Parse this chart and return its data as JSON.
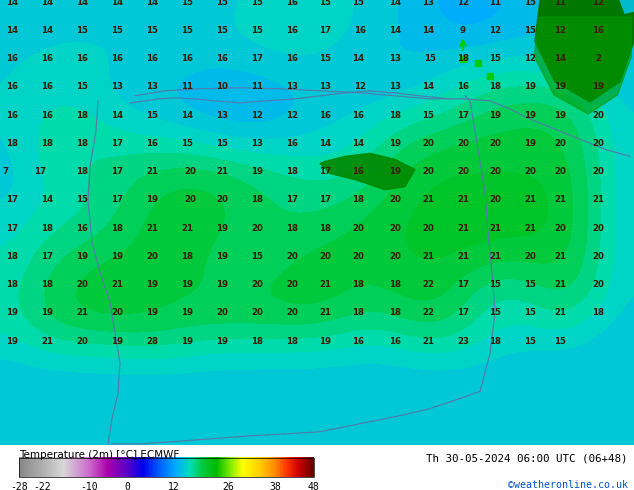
{
  "title_left": "Temperature (2m) [°C] ECMWF",
  "title_right": "Th 30-05-2024 06:00 UTC (06+48)",
  "credit": "©weatheronline.co.uk",
  "colorbar_ticks": [
    -28,
    -22,
    -10,
    0,
    12,
    26,
    38,
    48
  ],
  "figsize": [
    6.34,
    4.9
  ],
  "dpi": 100,
  "map_facecolor": "#f5b800",
  "cb_label_color": "black",
  "credit_color": "#0055cc",
  "temp_text_color": "#3d1a00",
  "border_color": "#5577aa",
  "temp_labels": [
    [
      12,
      2,
      "14"
    ],
    [
      47,
      2,
      "14"
    ],
    [
      82,
      2,
      "14"
    ],
    [
      117,
      2,
      "14"
    ],
    [
      152,
      2,
      "14"
    ],
    [
      187,
      2,
      "15"
    ],
    [
      222,
      2,
      "15"
    ],
    [
      257,
      2,
      "15"
    ],
    [
      292,
      2,
      "16"
    ],
    [
      325,
      2,
      "15"
    ],
    [
      358,
      2,
      "15"
    ],
    [
      395,
      2,
      "14"
    ],
    [
      428,
      2,
      "13"
    ],
    [
      463,
      2,
      "12"
    ],
    [
      495,
      2,
      "11"
    ],
    [
      530,
      2,
      "15"
    ],
    [
      560,
      2,
      "11"
    ],
    [
      598,
      2,
      "12"
    ],
    [
      12,
      30,
      "14"
    ],
    [
      47,
      30,
      "14"
    ],
    [
      82,
      30,
      "15"
    ],
    [
      117,
      30,
      "15"
    ],
    [
      152,
      30,
      "15"
    ],
    [
      187,
      30,
      "15"
    ],
    [
      222,
      30,
      "15"
    ],
    [
      257,
      30,
      "15"
    ],
    [
      292,
      30,
      "16"
    ],
    [
      325,
      30,
      "17"
    ],
    [
      360,
      30,
      "16"
    ],
    [
      395,
      30,
      "14"
    ],
    [
      428,
      30,
      "14"
    ],
    [
      463,
      30,
      "9"
    ],
    [
      495,
      30,
      "12"
    ],
    [
      530,
      30,
      "15"
    ],
    [
      560,
      30,
      "12"
    ],
    [
      598,
      30,
      "16"
    ],
    [
      12,
      58,
      "16"
    ],
    [
      47,
      58,
      "16"
    ],
    [
      82,
      58,
      "16"
    ],
    [
      117,
      58,
      "16"
    ],
    [
      152,
      58,
      "16"
    ],
    [
      187,
      58,
      "16"
    ],
    [
      222,
      58,
      "16"
    ],
    [
      257,
      58,
      "17"
    ],
    [
      292,
      58,
      "16"
    ],
    [
      325,
      58,
      "15"
    ],
    [
      358,
      58,
      "14"
    ],
    [
      395,
      58,
      "13"
    ],
    [
      430,
      58,
      "15"
    ],
    [
      463,
      58,
      "18"
    ],
    [
      495,
      58,
      "15"
    ],
    [
      530,
      58,
      "12"
    ],
    [
      560,
      58,
      "14"
    ],
    [
      598,
      58,
      "2"
    ],
    [
      12,
      86,
      "16"
    ],
    [
      47,
      86,
      "16"
    ],
    [
      82,
      86,
      "15"
    ],
    [
      117,
      86,
      "13"
    ],
    [
      152,
      86,
      "13"
    ],
    [
      187,
      86,
      "11"
    ],
    [
      222,
      86,
      "10"
    ],
    [
      257,
      86,
      "11"
    ],
    [
      292,
      86,
      "13"
    ],
    [
      325,
      86,
      "13"
    ],
    [
      360,
      86,
      "12"
    ],
    [
      395,
      86,
      "13"
    ],
    [
      428,
      86,
      "14"
    ],
    [
      463,
      86,
      "16"
    ],
    [
      495,
      86,
      "18"
    ],
    [
      530,
      86,
      "19"
    ],
    [
      560,
      86,
      "19"
    ],
    [
      598,
      86,
      "19"
    ],
    [
      12,
      114,
      "16"
    ],
    [
      47,
      114,
      "16"
    ],
    [
      82,
      114,
      "18"
    ],
    [
      117,
      114,
      "14"
    ],
    [
      152,
      114,
      "15"
    ],
    [
      187,
      114,
      "14"
    ],
    [
      222,
      114,
      "13"
    ],
    [
      257,
      114,
      "12"
    ],
    [
      292,
      114,
      "12"
    ],
    [
      325,
      114,
      "16"
    ],
    [
      358,
      114,
      "16"
    ],
    [
      395,
      114,
      "18"
    ],
    [
      428,
      114,
      "15"
    ],
    [
      463,
      114,
      "17"
    ],
    [
      495,
      114,
      "19"
    ],
    [
      530,
      114,
      "19"
    ],
    [
      560,
      114,
      "19"
    ],
    [
      598,
      114,
      "20"
    ],
    [
      12,
      142,
      "18"
    ],
    [
      47,
      142,
      "18"
    ],
    [
      82,
      142,
      "18"
    ],
    [
      117,
      142,
      "17"
    ],
    [
      152,
      142,
      "16"
    ],
    [
      187,
      142,
      "15"
    ],
    [
      222,
      142,
      "15"
    ],
    [
      257,
      142,
      "13"
    ],
    [
      292,
      142,
      "16"
    ],
    [
      325,
      142,
      "14"
    ],
    [
      358,
      142,
      "14"
    ],
    [
      395,
      142,
      "19"
    ],
    [
      428,
      142,
      "20"
    ],
    [
      463,
      142,
      "20"
    ],
    [
      495,
      142,
      "20"
    ],
    [
      530,
      142,
      "19"
    ],
    [
      560,
      142,
      "20"
    ],
    [
      598,
      142,
      "20"
    ],
    [
      5,
      170,
      "7"
    ],
    [
      40,
      170,
      "17"
    ],
    [
      82,
      170,
      "18"
    ],
    [
      117,
      170,
      "17"
    ],
    [
      152,
      170,
      "21"
    ],
    [
      190,
      170,
      "20"
    ],
    [
      222,
      170,
      "21"
    ],
    [
      257,
      170,
      "19"
    ],
    [
      292,
      170,
      "18"
    ],
    [
      325,
      170,
      "17"
    ],
    [
      358,
      170,
      "16"
    ],
    [
      395,
      170,
      "19"
    ],
    [
      428,
      170,
      "20"
    ],
    [
      463,
      170,
      "20"
    ],
    [
      495,
      170,
      "20"
    ],
    [
      530,
      170,
      "20"
    ],
    [
      560,
      170,
      "20"
    ],
    [
      598,
      170,
      "20"
    ],
    [
      12,
      198,
      "17"
    ],
    [
      47,
      198,
      "14"
    ],
    [
      82,
      198,
      "15"
    ],
    [
      117,
      198,
      "17"
    ],
    [
      152,
      198,
      "19"
    ],
    [
      190,
      198,
      "20"
    ],
    [
      222,
      198,
      "20"
    ],
    [
      257,
      198,
      "18"
    ],
    [
      292,
      198,
      "17"
    ],
    [
      325,
      198,
      "17"
    ],
    [
      358,
      198,
      "18"
    ],
    [
      395,
      198,
      "20"
    ],
    [
      428,
      198,
      "21"
    ],
    [
      463,
      198,
      "21"
    ],
    [
      495,
      198,
      "20"
    ],
    [
      530,
      198,
      "21"
    ],
    [
      560,
      198,
      "21"
    ],
    [
      598,
      198,
      "21"
    ],
    [
      12,
      226,
      "17"
    ],
    [
      47,
      226,
      "18"
    ],
    [
      82,
      226,
      "16"
    ],
    [
      117,
      226,
      "18"
    ],
    [
      152,
      226,
      "21"
    ],
    [
      187,
      226,
      "21"
    ],
    [
      222,
      226,
      "19"
    ],
    [
      257,
      226,
      "20"
    ],
    [
      292,
      226,
      "18"
    ],
    [
      325,
      226,
      "18"
    ],
    [
      358,
      226,
      "20"
    ],
    [
      395,
      226,
      "20"
    ],
    [
      428,
      226,
      "20"
    ],
    [
      463,
      226,
      "21"
    ],
    [
      495,
      226,
      "21"
    ],
    [
      530,
      226,
      "21"
    ],
    [
      560,
      226,
      "20"
    ],
    [
      598,
      226,
      "20"
    ],
    [
      12,
      254,
      "18"
    ],
    [
      47,
      254,
      "17"
    ],
    [
      82,
      254,
      "19"
    ],
    [
      117,
      254,
      "19"
    ],
    [
      152,
      254,
      "20"
    ],
    [
      187,
      254,
      "18"
    ],
    [
      222,
      254,
      "19"
    ],
    [
      257,
      254,
      "15"
    ],
    [
      292,
      254,
      "20"
    ],
    [
      325,
      254,
      "20"
    ],
    [
      358,
      254,
      "20"
    ],
    [
      395,
      254,
      "20"
    ],
    [
      428,
      254,
      "21"
    ],
    [
      463,
      254,
      "21"
    ],
    [
      495,
      254,
      "21"
    ],
    [
      530,
      254,
      "20"
    ],
    [
      560,
      254,
      "21"
    ],
    [
      598,
      254,
      "20"
    ],
    [
      12,
      282,
      "18"
    ],
    [
      47,
      282,
      "18"
    ],
    [
      82,
      282,
      "20"
    ],
    [
      117,
      282,
      "21"
    ],
    [
      152,
      282,
      "19"
    ],
    [
      187,
      282,
      "19"
    ],
    [
      222,
      282,
      "19"
    ],
    [
      257,
      282,
      "20"
    ],
    [
      292,
      282,
      "20"
    ],
    [
      325,
      282,
      "21"
    ],
    [
      358,
      282,
      "18"
    ],
    [
      395,
      282,
      "18"
    ],
    [
      428,
      282,
      "22"
    ],
    [
      463,
      282,
      "17"
    ],
    [
      495,
      282,
      "15"
    ],
    [
      530,
      282,
      "15"
    ],
    [
      560,
      282,
      "21"
    ],
    [
      598,
      282,
      "20"
    ],
    [
      12,
      310,
      "19"
    ],
    [
      47,
      310,
      "19"
    ],
    [
      82,
      310,
      "21"
    ],
    [
      117,
      310,
      "20"
    ],
    [
      152,
      310,
      "19"
    ],
    [
      187,
      310,
      "19"
    ],
    [
      222,
      310,
      "20"
    ],
    [
      257,
      310,
      "20"
    ],
    [
      292,
      310,
      "20"
    ],
    [
      325,
      310,
      "21"
    ],
    [
      358,
      310,
      "18"
    ],
    [
      395,
      310,
      "18"
    ],
    [
      428,
      310,
      "22"
    ],
    [
      463,
      310,
      "17"
    ],
    [
      495,
      310,
      "15"
    ],
    [
      530,
      310,
      "15"
    ],
    [
      560,
      310,
      "21"
    ],
    [
      598,
      310,
      "18"
    ],
    [
      12,
      338,
      "19"
    ],
    [
      47,
      338,
      "21"
    ],
    [
      82,
      338,
      "20"
    ],
    [
      117,
      338,
      "19"
    ],
    [
      152,
      338,
      "28"
    ],
    [
      187,
      338,
      "19"
    ],
    [
      222,
      338,
      "19"
    ],
    [
      257,
      338,
      "18"
    ],
    [
      292,
      338,
      "18"
    ],
    [
      325,
      338,
      "19"
    ],
    [
      358,
      338,
      "16"
    ],
    [
      395,
      338,
      "16"
    ],
    [
      428,
      338,
      "21"
    ],
    [
      463,
      338,
      "23"
    ],
    [
      495,
      338,
      "18"
    ],
    [
      530,
      338,
      "15"
    ],
    [
      560,
      338,
      "15"
    ]
  ],
  "colorbar_colors_pos": [
    [
      0.0,
      "#888888"
    ],
    [
      0.08,
      "#b0b0b0"
    ],
    [
      0.15,
      "#d8d8d8"
    ],
    [
      0.24,
      "#cc66cc"
    ],
    [
      0.3,
      "#aa00aa"
    ],
    [
      0.37,
      "#5500cc"
    ],
    [
      0.42,
      "#0000ee"
    ],
    [
      0.47,
      "#0055ff"
    ],
    [
      0.53,
      "#00aaff"
    ],
    [
      0.58,
      "#00ddbb"
    ],
    [
      0.62,
      "#00cc44"
    ],
    [
      0.67,
      "#00bb00"
    ],
    [
      0.72,
      "#88ee00"
    ],
    [
      0.76,
      "#ffff00"
    ],
    [
      0.82,
      "#ffcc00"
    ],
    [
      0.87,
      "#ff8800"
    ],
    [
      0.91,
      "#ff3300"
    ],
    [
      0.95,
      "#cc0000"
    ],
    [
      1.0,
      "#660000"
    ]
  ]
}
